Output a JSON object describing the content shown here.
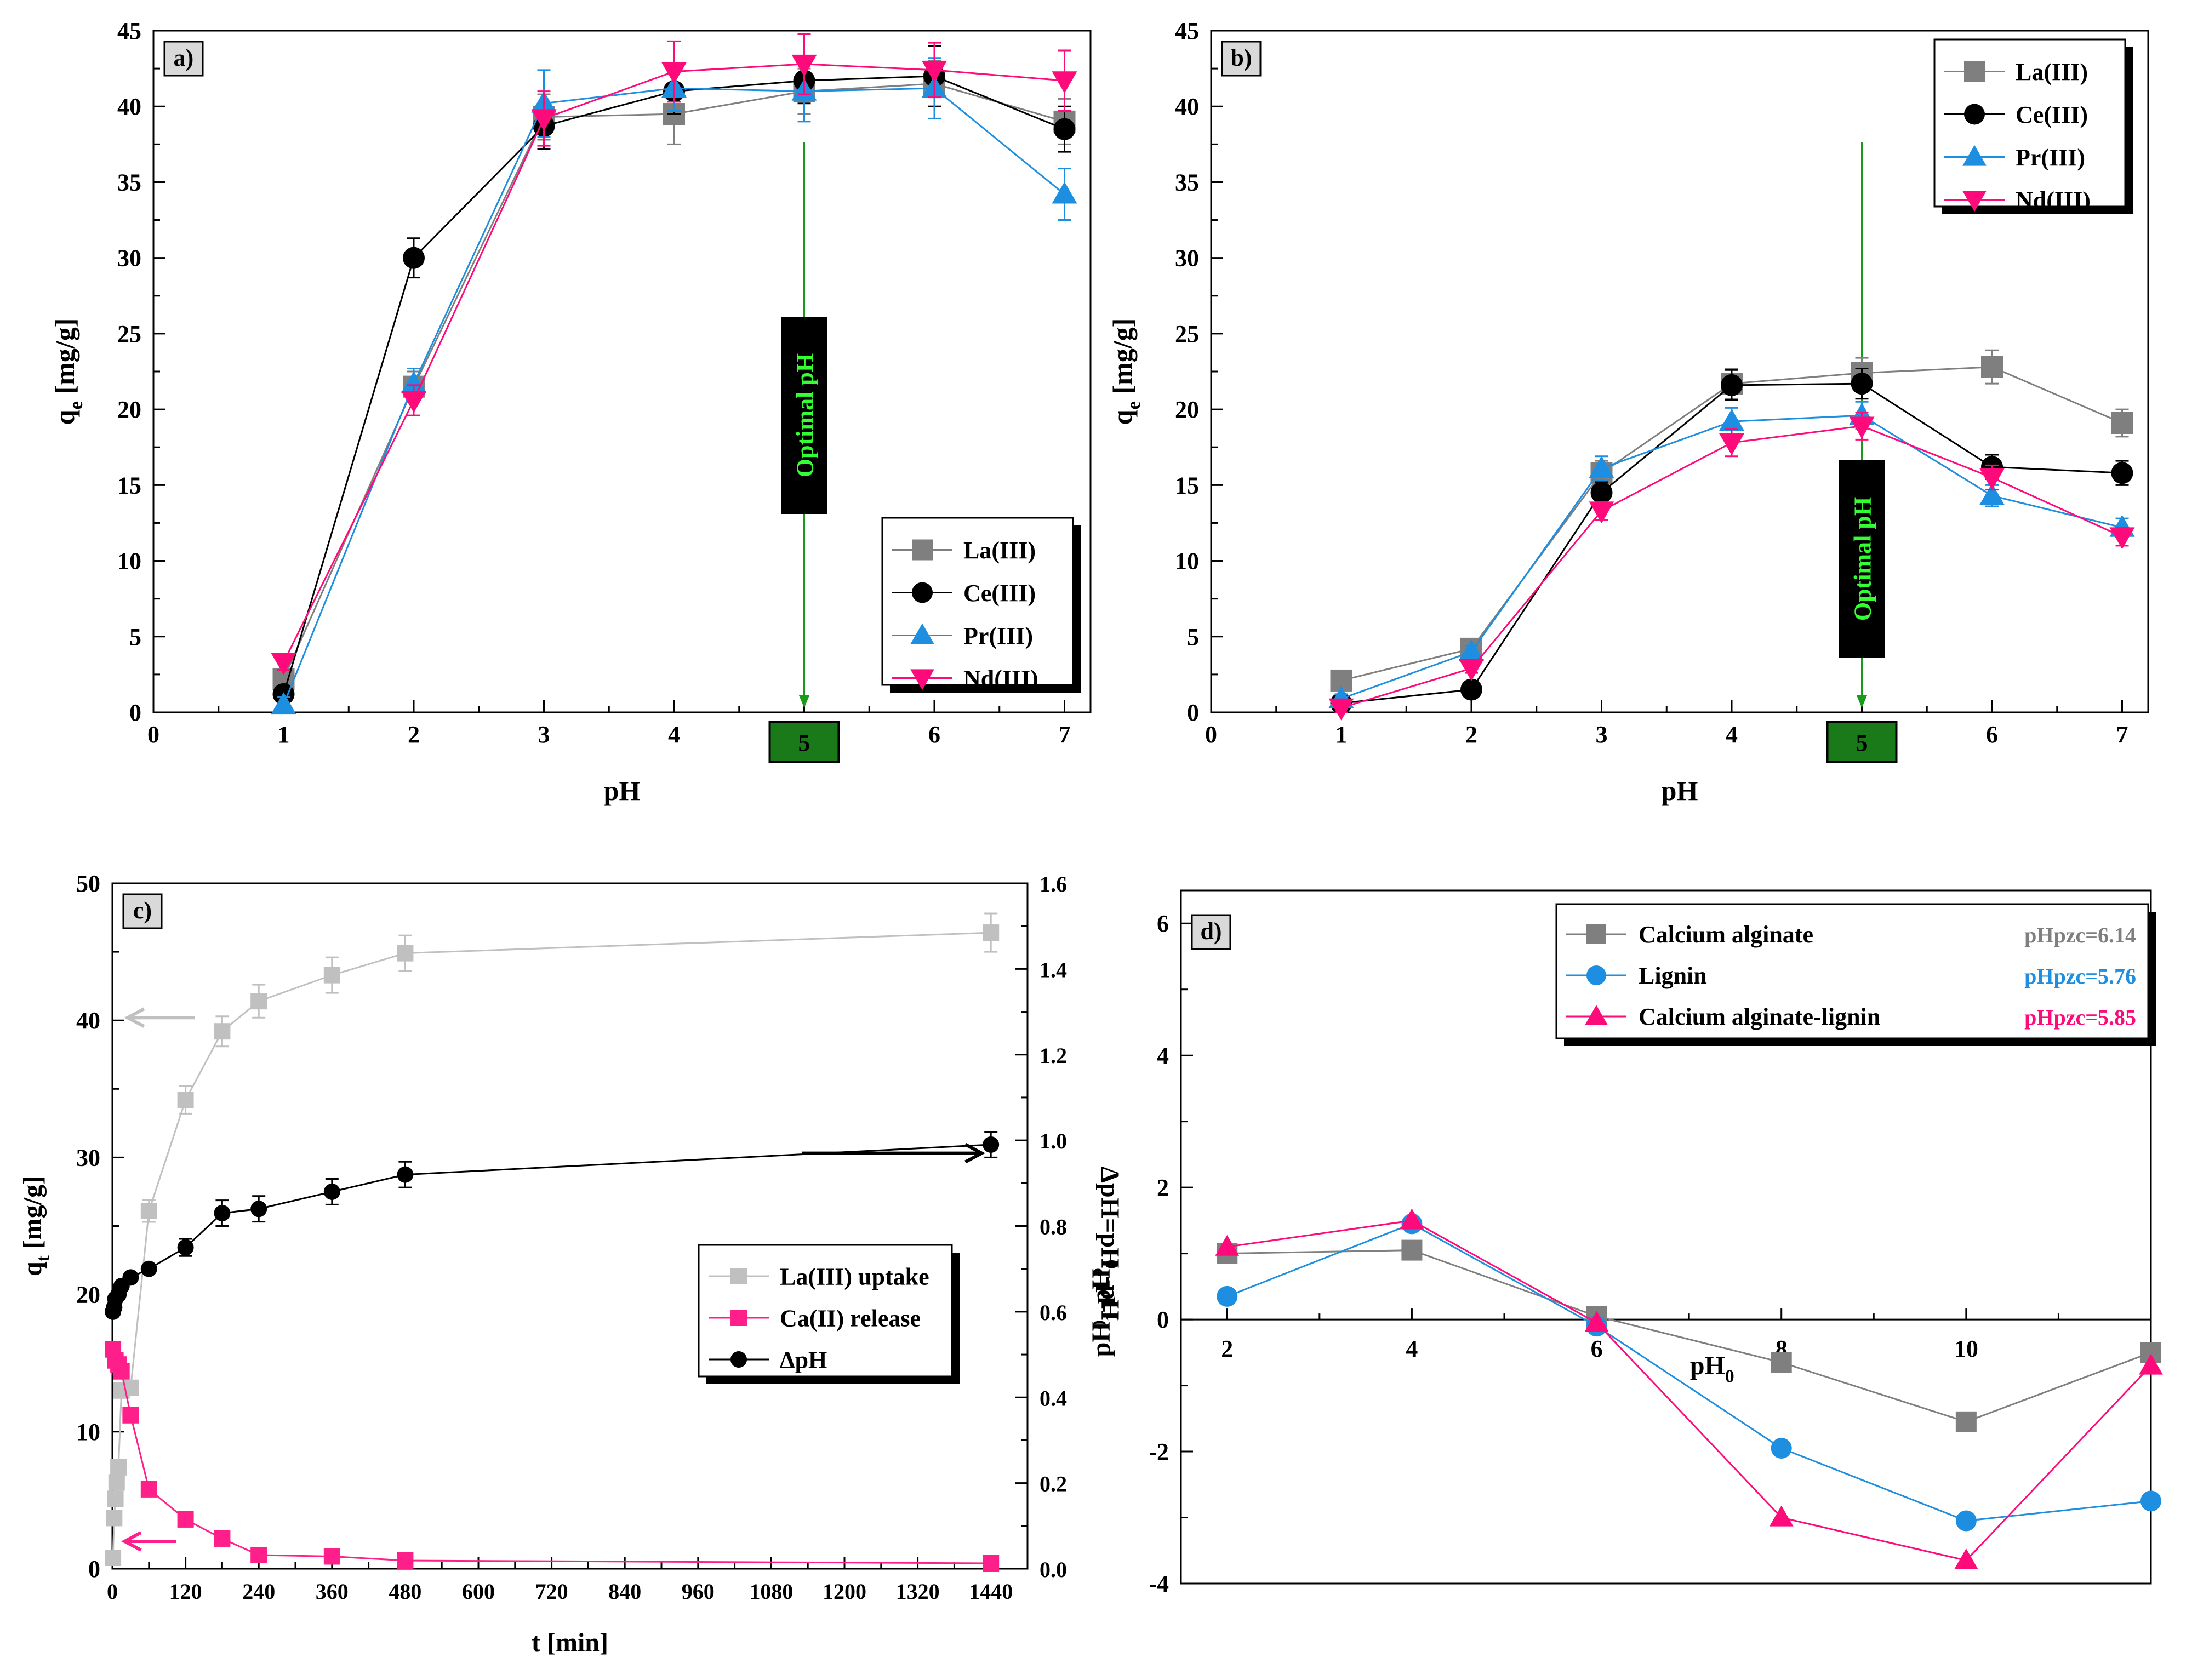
{
  "colors": {
    "la": "#7f7f7f",
    "ce": "#000000",
    "pr": "#1e8fe0",
    "nd": "#ff0a7a",
    "green_box": "#1a7a1a",
    "green_arrow": "#1a9a1a",
    "green_text": "#33ff33",
    "la_uptake": "#c0c0c0",
    "ca_release": "#ff1f8a",
    "delta_ph": "#000000"
  },
  "panels": {
    "a": {
      "label": "a)",
      "xlabel": "pH",
      "ylabel_main": "q",
      "ylabel_sub": "e",
      "ylabel_unit": " [mg/g]",
      "annotation": "Optimal pH",
      "highlight_tick": "5",
      "legend": [
        "La(III)",
        "Ce(III)",
        "Pr(III)",
        "Nd(III)"
      ]
    },
    "b": {
      "label": "b)",
      "xlabel": "pH",
      "ylabel_main": "q",
      "ylabel_sub": "e",
      "ylabel_unit": " [mg/g]",
      "annotation": "Optimal pH",
      "highlight_tick": "5",
      "legend": [
        "La(III)",
        "Ce(III)",
        "Pr(III)",
        "Nd(III)"
      ]
    },
    "c": {
      "label": "c)",
      "xlabel": "t [min]",
      "ylabel_main": "q",
      "ylabel_sub": "t",
      "ylabel_unit": " [mg/g]",
      "y2label": "ΔpH=pH",
      "y2label_sub1": "e",
      "y2label_mid": "-pH",
      "y2label_sub2": "0",
      "legend": [
        "La(III) uptake",
        "Ca(II) release",
        "ΔpH"
      ]
    },
    "d": {
      "label": "d)",
      "xlabel_main": "pH",
      "xlabel_sub": "0",
      "ylabel_main": "pH",
      "ylabel_sub1": "1",
      "ylabel_mid": "-pH",
      "ylabel_sub2": "0",
      "legend": [
        "Calcium alginate",
        "Lignin",
        "Calcium alginate-lignin"
      ],
      "pzc": [
        "pHpzc=6.14",
        "pHpzc=5.76",
        "pHpzc=5.85"
      ]
    }
  },
  "chart_data": [
    {
      "type": "line",
      "panel": "a",
      "xlabel": "pH",
      "ylabel": "q_e [mg/g]",
      "xlim": [
        0,
        7.2
      ],
      "ylim": [
        0,
        45
      ],
      "x_ticks": [
        0,
        1,
        2,
        3,
        4,
        5,
        6,
        7
      ],
      "y_ticks": [
        0,
        5,
        10,
        15,
        20,
        25,
        30,
        35,
        40,
        45
      ],
      "x": [
        1,
        2,
        3,
        4,
        5,
        6,
        7
      ],
      "series": [
        {
          "name": "La(III)",
          "values": [
            2.2,
            21.5,
            39.3,
            39.5,
            41.0,
            41.5,
            39.0
          ],
          "errors": [
            0.5,
            1.0,
            1.5,
            2.0,
            1.5,
            1.5,
            1.5
          ]
        },
        {
          "name": "Ce(III)",
          "values": [
            1.2,
            30.0,
            38.7,
            41.0,
            41.7,
            42.0,
            38.5
          ],
          "errors": [
            0.5,
            1.3,
            1.5,
            1.5,
            1.5,
            2.0,
            1.5
          ]
        },
        {
          "name": "Pr(III)",
          "values": [
            0.5,
            21.7,
            40.2,
            41.2,
            41.0,
            41.2,
            34.2
          ],
          "errors": [
            0.5,
            1.0,
            2.2,
            1.5,
            2.0,
            2.0,
            1.7
          ]
        },
        {
          "name": "Nd(III)",
          "values": [
            3.3,
            20.6,
            39.2,
            42.3,
            42.8,
            42.4,
            41.7
          ],
          "errors": [
            0.5,
            1.0,
            1.8,
            2.0,
            2.0,
            1.8,
            2.0
          ]
        }
      ]
    },
    {
      "type": "line",
      "panel": "b",
      "xlabel": "pH",
      "ylabel": "q_e [mg/g]",
      "xlim": [
        0,
        7.2
      ],
      "ylim": [
        0,
        45
      ],
      "x_ticks": [
        0,
        1,
        2,
        3,
        4,
        5,
        6,
        7
      ],
      "y_ticks": [
        0,
        5,
        10,
        15,
        20,
        25,
        30,
        35,
        40,
        45
      ],
      "x": [
        1,
        2,
        3,
        4,
        5,
        6,
        7
      ],
      "series": [
        {
          "name": "La(III)",
          "values": [
            2.1,
            4.2,
            15.8,
            21.7,
            22.4,
            22.8,
            19.1
          ],
          "errors": [
            0.3,
            0.5,
            0.8,
            1.0,
            1.0,
            1.1,
            0.9
          ]
        },
        {
          "name": "Ce(III)",
          "values": [
            0.6,
            1.5,
            14.5,
            21.6,
            21.7,
            16.2,
            15.8
          ],
          "errors": [
            0.3,
            0.3,
            0.7,
            1.0,
            1.0,
            0.8,
            0.8
          ]
        },
        {
          "name": "Pr(III)",
          "values": [
            0.9,
            4.0,
            16.1,
            19.2,
            19.6,
            14.3,
            12.2
          ],
          "errors": [
            0.3,
            0.4,
            0.8,
            0.9,
            0.9,
            0.7,
            0.6
          ]
        },
        {
          "name": "Nd(III)",
          "values": [
            0.3,
            2.9,
            13.3,
            17.8,
            18.9,
            15.5,
            11.6
          ],
          "errors": [
            0.3,
            0.3,
            0.6,
            0.9,
            0.9,
            0.8,
            0.6
          ]
        }
      ]
    },
    {
      "type": "line",
      "panel": "c",
      "xlabel": "t [min]",
      "ylabel": "q_t [mg/g]",
      "y2label": "ΔpH=pH_e-pH_0",
      "xlim": [
        0,
        1500
      ],
      "ylim": [
        0,
        50
      ],
      "y2lim": [
        0,
        1.6
      ],
      "x_ticks": [
        0,
        120,
        240,
        360,
        480,
        600,
        720,
        840,
        960,
        1080,
        1200,
        1320,
        1440
      ],
      "y_ticks": [
        0,
        10,
        20,
        30,
        40,
        50
      ],
      "y2_ticks": [
        0.0,
        0.2,
        0.4,
        0.6,
        0.8,
        1.0,
        1.2,
        1.4,
        1.6
      ],
      "series": [
        {
          "name": "La(III) uptake",
          "axis": "left",
          "x": [
            1,
            3,
            5,
            7,
            10,
            15,
            30,
            60,
            120,
            180,
            240,
            360,
            480,
            1440
          ],
          "values": [
            0.8,
            3.7,
            5.1,
            6.3,
            7.4,
            13.0,
            13.2,
            26.1,
            34.2,
            39.2,
            41.4,
            43.3,
            44.9,
            46.4
          ],
          "errors": [
            0,
            0,
            0,
            0,
            0,
            0,
            0,
            0.8,
            1.0,
            1.1,
            1.2,
            1.3,
            1.3,
            1.4
          ]
        },
        {
          "name": "Ca(II) release",
          "axis": "left",
          "x": [
            1,
            5,
            10,
            15,
            30,
            60,
            120,
            180,
            240,
            360,
            480,
            1440
          ],
          "values": [
            16.0,
            15.2,
            14.9,
            14.4,
            11.2,
            5.8,
            3.6,
            2.2,
            1.0,
            0.9,
            0.6,
            0.4
          ],
          "errors": [
            0,
            0,
            0,
            0,
            0,
            0,
            0,
            0,
            0,
            0,
            0,
            0
          ]
        },
        {
          "name": "ΔpH",
          "axis": "right",
          "x": [
            1,
            3,
            5,
            10,
            15,
            30,
            60,
            120,
            180,
            240,
            360,
            480,
            1440
          ],
          "values": [
            0.6,
            0.61,
            0.63,
            0.64,
            0.66,
            0.68,
            0.7,
            0.75,
            0.83,
            0.84,
            0.88,
            0.92,
            0.99
          ],
          "errors": [
            0,
            0,
            0,
            0,
            0,
            0,
            0,
            0.02,
            0.03,
            0.03,
            0.03,
            0.03,
            0.03
          ]
        }
      ]
    },
    {
      "type": "line",
      "panel": "d",
      "xlabel": "pH_0",
      "ylabel": "pH_1-pH_0",
      "xlim": [
        1.5,
        12
      ],
      "ylim": [
        -4,
        6.5
      ],
      "x_ticks": [
        2,
        4,
        6,
        8,
        10
      ],
      "y_ticks": [
        -4,
        -2,
        0,
        2,
        4,
        6
      ],
      "x": [
        2,
        4,
        6,
        8,
        10,
        12
      ],
      "series": [
        {
          "name": "Calcium alginate",
          "values": [
            1.0,
            1.05,
            0.05,
            -0.65,
            -1.55,
            -0.5
          ]
        },
        {
          "name": "Lignin",
          "values": [
            0.35,
            1.45,
            -0.1,
            -1.95,
            -3.05,
            -2.75
          ]
        },
        {
          "name": "Calcium alginate-lignin",
          "values": [
            1.1,
            1.5,
            -0.05,
            -3.0,
            -3.65,
            -0.7
          ]
        }
      ]
    }
  ]
}
